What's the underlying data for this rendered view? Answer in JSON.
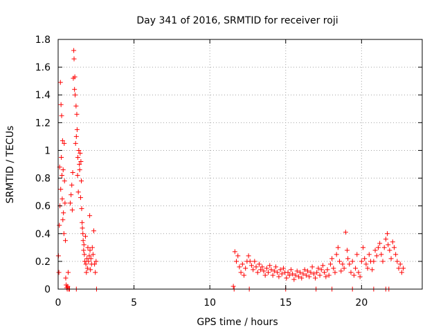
{
  "chart_data": {
    "type": "scatter",
    "title": "Day 341 of 2016, SRMTID for receiver roji",
    "xlabel": "GPS time / hours",
    "ylabel": "SRMTID / TECUs",
    "xlim": [
      0,
      24
    ],
    "ylim": [
      0,
      1.8
    ],
    "xticks": [
      0,
      5,
      10,
      15,
      20
    ],
    "yticks": [
      0,
      0.2,
      0.4,
      0.6,
      0.8,
      1,
      1.2,
      1.4,
      1.6,
      1.8
    ],
    "xtick_labels": [
      "0",
      "5",
      "10",
      "15",
      "20"
    ],
    "ytick_labels": [
      "0",
      "0.2",
      "0.4",
      "0.6",
      "0.8",
      "1",
      "1.2",
      "1.4",
      "1.6",
      "1.8"
    ],
    "grid": true,
    "marker": "plus",
    "color": "#ff0000",
    "series": [
      {
        "name": "SRMTID",
        "points": [
          [
            0.02,
            0.24
          ],
          [
            0.05,
            0.12
          ],
          [
            0.08,
            0.46
          ],
          [
            0.1,
            0.88
          ],
          [
            0.12,
            0.6
          ],
          [
            0.15,
            1.49
          ],
          [
            0.17,
            0.72
          ],
          [
            0.19,
            1.33
          ],
          [
            0.21,
            0.95
          ],
          [
            0.23,
            1.25
          ],
          [
            0.25,
            0.82
          ],
          [
            0.27,
            0.65
          ],
          [
            0.29,
            1.07
          ],
          [
            0.31,
            0.5
          ],
          [
            0.33,
            0.86
          ],
          [
            0.35,
            0.55
          ],
          [
            0.38,
            0.4
          ],
          [
            0.4,
            1.05
          ],
          [
            0.42,
            0.78
          ],
          [
            0.45,
            0.62
          ],
          [
            0.48,
            0.35
          ],
          [
            0.5,
            0.08
          ],
          [
            0.53,
            0.03
          ],
          [
            0.56,
            0.01
          ],
          [
            0.6,
            0.0
          ],
          [
            0.63,
            0.02
          ],
          [
            0.66,
            0.12
          ],
          [
            0.7,
            0.0
          ],
          [
            0.75,
            0.0
          ],
          [
            0.8,
            0.62
          ],
          [
            0.85,
            0.68
          ],
          [
            0.9,
            0.75
          ],
          [
            0.93,
            0.57
          ],
          [
            0.96,
            0.84
          ],
          [
            1.0,
            1.52
          ],
          [
            1.03,
            1.72
          ],
          [
            1.05,
            1.66
          ],
          [
            1.08,
            1.44
          ],
          [
            1.1,
            1.53
          ],
          [
            1.12,
            1.4
          ],
          [
            1.15,
            1.05
          ],
          [
            1.18,
            1.32
          ],
          [
            1.2,
            1.1
          ],
          [
            1.23,
            1.26
          ],
          [
            1.25,
            1.15
          ],
          [
            1.28,
            0.82
          ],
          [
            1.3,
            0.95
          ],
          [
            1.33,
            0.7
          ],
          [
            1.36,
            1.0
          ],
          [
            1.4,
            0.9
          ],
          [
            1.42,
            0.86
          ],
          [
            1.45,
            0.98
          ],
          [
            1.48,
            0.66
          ],
          [
            1.5,
            0.92
          ],
          [
            1.53,
            0.78
          ],
          [
            1.55,
            0.58
          ],
          [
            1.58,
            0.48
          ],
          [
            1.6,
            0.44
          ],
          [
            1.63,
            0.4
          ],
          [
            1.65,
            0.35
          ],
          [
            1.68,
            0.28
          ],
          [
            1.7,
            0.32
          ],
          [
            1.73,
            0.25
          ],
          [
            1.76,
            0.2
          ],
          [
            1.8,
            0.38
          ],
          [
            1.83,
            0.18
          ],
          [
            1.86,
            0.12
          ],
          [
            1.9,
            0.22
          ],
          [
            1.93,
            0.15
          ],
          [
            1.96,
            0.3
          ],
          [
            2.0,
            0.2
          ],
          [
            2.05,
            0.24
          ],
          [
            2.08,
            0.53
          ],
          [
            2.1,
            0.28
          ],
          [
            2.13,
            0.14
          ],
          [
            2.16,
            0.22
          ],
          [
            2.2,
            0.18
          ],
          [
            2.25,
            0.3
          ],
          [
            2.3,
            0.25
          ],
          [
            2.35,
            0.42
          ],
          [
            2.4,
            0.18
          ],
          [
            2.45,
            0.12
          ],
          [
            2.5,
            0.2
          ],
          [
            2.53,
            0.0
          ],
          [
            1.2,
            0.0
          ],
          [
            11.55,
            0.02
          ],
          [
            11.6,
            0.0
          ],
          [
            11.65,
            0.27
          ],
          [
            11.75,
            0.2
          ],
          [
            11.85,
            0.24
          ],
          [
            11.95,
            0.16
          ],
          [
            12.05,
            0.12
          ],
          [
            12.15,
            0.18
          ],
          [
            12.25,
            0.1
          ],
          [
            12.35,
            0.15
          ],
          [
            12.45,
            0.2
          ],
          [
            12.55,
            0.24
          ],
          [
            12.65,
            0.2
          ],
          [
            12.75,
            0.17
          ],
          [
            12.85,
            0.14
          ],
          [
            12.95,
            0.2
          ],
          [
            13.05,
            0.16
          ],
          [
            13.15,
            0.12
          ],
          [
            13.25,
            0.18
          ],
          [
            13.35,
            0.14
          ],
          [
            13.45,
            0.16
          ],
          [
            13.55,
            0.13
          ],
          [
            13.65,
            0.1
          ],
          [
            13.75,
            0.15
          ],
          [
            13.85,
            0.12
          ],
          [
            13.95,
            0.17
          ],
          [
            14.05,
            0.14
          ],
          [
            14.15,
            0.1
          ],
          [
            14.25,
            0.13
          ],
          [
            14.35,
            0.16
          ],
          [
            14.45,
            0.12
          ],
          [
            14.55,
            0.09
          ],
          [
            14.65,
            0.14
          ],
          [
            14.75,
            0.11
          ],
          [
            14.85,
            0.15
          ],
          [
            14.95,
            0.12
          ],
          [
            15.05,
            0.08
          ],
          [
            15.15,
            0.12
          ],
          [
            15.25,
            0.1
          ],
          [
            15.35,
            0.14
          ],
          [
            15.45,
            0.11
          ],
          [
            15.55,
            0.07
          ],
          [
            15.65,
            0.1
          ],
          [
            15.75,
            0.13
          ],
          [
            15.85,
            0.09
          ],
          [
            15.95,
            0.12
          ],
          [
            16.05,
            0.08
          ],
          [
            16.15,
            0.11
          ],
          [
            16.25,
            0.14
          ],
          [
            16.35,
            0.1
          ],
          [
            16.45,
            0.13
          ],
          [
            16.55,
            0.09
          ],
          [
            16.65,
            0.12
          ],
          [
            16.75,
            0.16
          ],
          [
            16.85,
            0.11
          ],
          [
            16.95,
            0.08
          ],
          [
            17.05,
            0.12
          ],
          [
            17.15,
            0.15
          ],
          [
            17.25,
            0.1
          ],
          [
            17.35,
            0.14
          ],
          [
            17.45,
            0.17
          ],
          [
            17.55,
            0.12
          ],
          [
            17.65,
            0.09
          ],
          [
            17.75,
            0.14
          ],
          [
            17.85,
            0.1
          ],
          [
            17.95,
            0.18
          ],
          [
            18.05,
            0.22
          ],
          [
            18.15,
            0.15
          ],
          [
            18.25,
            0.12
          ],
          [
            18.35,
            0.25
          ],
          [
            18.45,
            0.3
          ],
          [
            18.55,
            0.2
          ],
          [
            18.65,
            0.13
          ],
          [
            18.75,
            0.18
          ],
          [
            18.85,
            0.15
          ],
          [
            18.95,
            0.41
          ],
          [
            19.05,
            0.28
          ],
          [
            19.1,
            0.22
          ],
          [
            19.2,
            0.18
          ],
          [
            19.3,
            0.12
          ],
          [
            19.4,
            0.2
          ],
          [
            19.5,
            0.1
          ],
          [
            19.6,
            0.15
          ],
          [
            19.7,
            0.25
          ],
          [
            19.8,
            0.12
          ],
          [
            19.9,
            0.09
          ],
          [
            20.0,
            0.2
          ],
          [
            20.1,
            0.3
          ],
          [
            20.2,
            0.22
          ],
          [
            20.3,
            0.18
          ],
          [
            20.4,
            0.15
          ],
          [
            20.5,
            0.25
          ],
          [
            20.6,
            0.2
          ],
          [
            20.7,
            0.14
          ],
          [
            20.8,
            0.2
          ],
          [
            20.9,
            0.28
          ],
          [
            21.0,
            0.24
          ],
          [
            21.1,
            0.3
          ],
          [
            21.2,
            0.33
          ],
          [
            21.3,
            0.25
          ],
          [
            21.4,
            0.2
          ],
          [
            21.5,
            0.3
          ],
          [
            21.6,
            0.36
          ],
          [
            21.7,
            0.4
          ],
          [
            21.75,
            0.32
          ],
          [
            21.85,
            0.28
          ],
          [
            21.95,
            0.22
          ],
          [
            22.05,
            0.34
          ],
          [
            22.15,
            0.3
          ],
          [
            22.25,
            0.25
          ],
          [
            22.35,
            0.2
          ],
          [
            22.45,
            0.15
          ],
          [
            22.55,
            0.18
          ],
          [
            22.65,
            0.12
          ],
          [
            22.75,
            0.15
          ],
          [
            12.6,
            0.0
          ],
          [
            15.0,
            0.0
          ],
          [
            17.0,
            0.0
          ],
          [
            18.05,
            0.0
          ],
          [
            19.4,
            0.0
          ],
          [
            20.8,
            0.0
          ],
          [
            21.6,
            0.0
          ],
          [
            21.8,
            0.0
          ]
        ]
      }
    ]
  }
}
